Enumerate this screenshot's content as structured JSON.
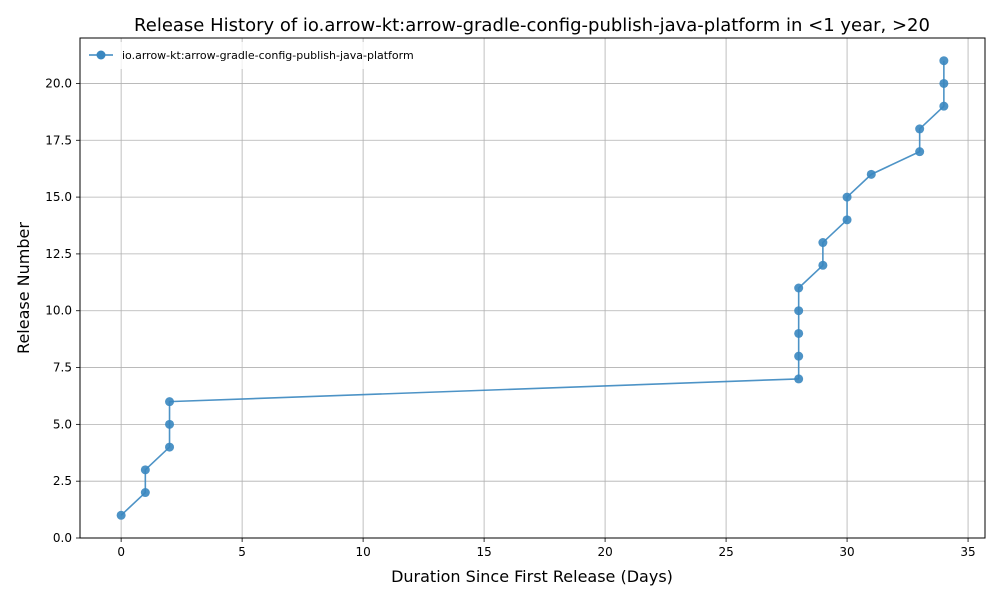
{
  "chart_data": {
    "type": "line",
    "title": "Release History of io.arrow-kt:arrow-gradle-config-publish-java-platform in <1 year, >20",
    "xlabel": "Duration Since First Release (Days)",
    "ylabel": "Release Number",
    "xlim": [
      -1.7,
      35.7
    ],
    "ylim": [
      0,
      22
    ],
    "xticks": [
      0,
      5,
      10,
      15,
      20,
      25,
      30,
      35
    ],
    "xtick_labels": [
      "0",
      "5",
      "10",
      "15",
      "20",
      "25",
      "30",
      "35"
    ],
    "yticks": [
      0,
      2.5,
      5,
      7.5,
      10,
      12.5,
      15,
      17.5,
      20
    ],
    "ytick_labels": [
      "0.0",
      "2.5",
      "5.0",
      "7.5",
      "10.0",
      "12.5",
      "15.0",
      "17.5",
      "20.0"
    ],
    "grid": true,
    "legend_position": "top-left",
    "series": [
      {
        "name": "io.arrow-kt:arrow-gradle-config-publish-java-platform",
        "color": "#3a87c0",
        "marker": "circle",
        "x": [
          0,
          1,
          1,
          2,
          2,
          2,
          28,
          28,
          28,
          28,
          28,
          29,
          29,
          30,
          30,
          31,
          33,
          33,
          34,
          34,
          34
        ],
        "y": [
          1,
          2,
          3,
          4,
          5,
          6,
          7,
          8,
          9,
          10,
          11,
          12,
          13,
          14,
          15,
          16,
          17,
          18,
          19,
          20,
          21
        ]
      }
    ]
  }
}
